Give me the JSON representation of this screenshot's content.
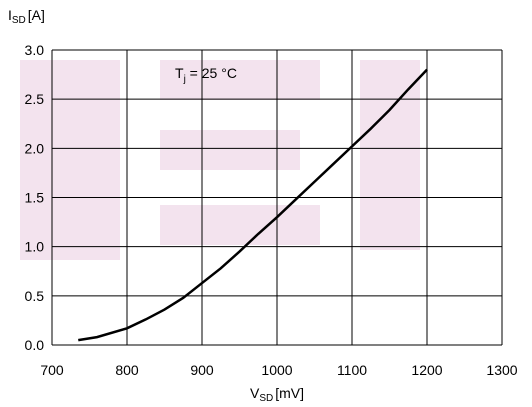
{
  "chart_data": {
    "type": "line",
    "ylabel": {
      "symbol": "I",
      "sub": "SD",
      "unit": "[A]"
    },
    "xlabel": {
      "symbol": "V",
      "sub": "SD",
      "unit": "[mV]"
    },
    "annotation": {
      "symbol": "T",
      "sub": "j",
      "text": " = 25 °C"
    },
    "xlim": [
      700,
      1300
    ],
    "xticks": [
      700,
      800,
      900,
      1000,
      1100,
      1200,
      1300
    ],
    "ylim": [
      0,
      3
    ],
    "yticks": [
      {
        "value": 0,
        "label": "0.0"
      },
      0.5,
      {
        "value": 1,
        "label": "1.0"
      },
      1.5,
      {
        "value": 2,
        "label": "2.0"
      },
      2.5,
      {
        "value": 3,
        "label": "3.0"
      }
    ],
    "grid": true,
    "series": [
      {
        "color": "#000000",
        "x": [
          735,
          760,
          800,
          825,
          850,
          875,
          900,
          925,
          950,
          975,
          1000,
          1025,
          1050,
          1075,
          1100,
          1125,
          1150,
          1175,
          1200
        ],
        "values": [
          0.05,
          0.08,
          0.17,
          0.26,
          0.36,
          0.48,
          0.63,
          0.78,
          0.95,
          1.13,
          1.3,
          1.48,
          1.66,
          1.84,
          2.02,
          2.2,
          2.39,
          2.6,
          2.8
        ]
      }
    ]
  }
}
